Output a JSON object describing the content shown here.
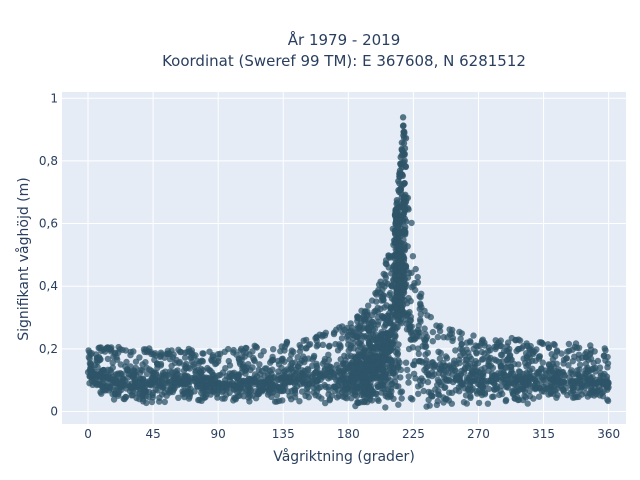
{
  "chart_data": {
    "type": "scatter",
    "title_line1": "År 1979 - 2019",
    "title_line2": "Koordinat (Sweref 99 TM): E 367608, N 6281512",
    "xlabel": "Vågriktning (grader)",
    "ylabel": "Signifikant våghöjd (m)",
    "xlim": [
      -18,
      372
    ],
    "ylim": [
      -0.04,
      1.02
    ],
    "xticks": [
      0,
      45,
      90,
      135,
      180,
      225,
      270,
      315,
      360
    ],
    "xtick_labels": [
      "0",
      "45",
      "90",
      "135",
      "180",
      "225",
      "270",
      "315",
      "360"
    ],
    "yticks": [
      0,
      0.2,
      0.4,
      0.6,
      0.8,
      1
    ],
    "ytick_labels": [
      "0",
      "0,2",
      "0,4",
      "0,6",
      "0,8",
      "1"
    ],
    "grid": true,
    "marker_color": "#2e5468",
    "background_color": "#e5ecf6",
    "envelope": {
      "x": [
        0,
        20,
        45,
        90,
        135,
        160,
        180,
        195,
        205,
        212,
        216,
        218,
        220,
        222,
        226,
        232,
        245,
        270,
        315,
        340,
        360
      ],
      "y_max": [
        0.2,
        0.21,
        0.2,
        0.2,
        0.22,
        0.25,
        0.28,
        0.35,
        0.46,
        0.62,
        0.8,
        0.97,
        0.88,
        0.72,
        0.48,
        0.34,
        0.27,
        0.24,
        0.23,
        0.22,
        0.21
      ],
      "y_min": [
        0.08,
        0.02,
        0.02,
        0.02,
        0.02,
        0.02,
        0.01,
        0.01,
        0.0,
        0.0,
        0.0,
        0.0,
        0.0,
        0.0,
        0.0,
        0.01,
        0.01,
        0.02,
        0.02,
        0.02,
        0.02
      ]
    }
  }
}
